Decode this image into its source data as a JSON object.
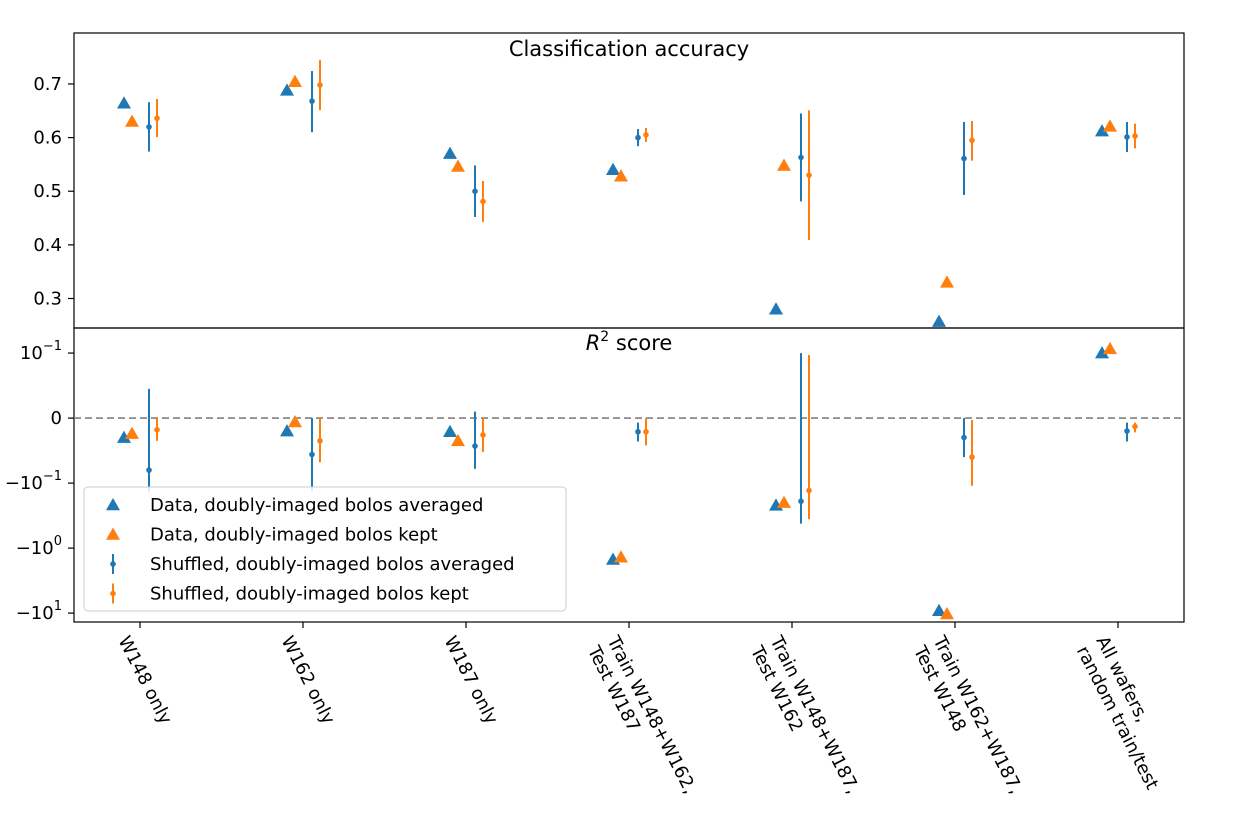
{
  "colors": {
    "blue": "#1f77b4",
    "orange": "#ff7f0e",
    "zero_line": "#808080"
  },
  "chart_data": [
    {
      "type": "scatter",
      "title": "Classification accuracy",
      "ylim": [
        0.245,
        0.795
      ],
      "yticks": [
        0.3,
        0.4,
        0.5,
        0.6,
        0.7
      ],
      "ytick_labels": [
        "0.3",
        "0.4",
        "0.5",
        "0.6",
        "0.7"
      ],
      "grid": false,
      "series": [
        {
          "name": "Data, doubly-imaged bolos averaged",
          "marker": "triangle",
          "color": "#1f77b4",
          "values": [
            0.664,
            0.688,
            0.57,
            0.54,
            0.28,
            0.257,
            0.612
          ]
        },
        {
          "name": "Data, doubly-imaged bolos kept",
          "marker": "triangle",
          "color": "#ff7f0e",
          "values": [
            0.63,
            0.704,
            0.546,
            0.528,
            0.548,
            0.33,
            0.621
          ]
        },
        {
          "name": "Shuffled, doubly-imaged bolos averaged",
          "marker": "errorbar",
          "color": "#1f77b4",
          "values": [
            0.62,
            0.668,
            0.5,
            0.6,
            0.563,
            0.561,
            0.601
          ],
          "err_low": [
            0.574,
            0.61,
            0.452,
            0.584,
            0.481,
            0.493,
            0.573
          ],
          "err_high": [
            0.666,
            0.724,
            0.548,
            0.616,
            0.645,
            0.629,
            0.629
          ]
        },
        {
          "name": "Shuffled, doubly-imaged bolos kept",
          "marker": "errorbar",
          "color": "#ff7f0e",
          "values": [
            0.636,
            0.698,
            0.481,
            0.605,
            0.53,
            0.595,
            0.603
          ],
          "err_low": [
            0.601,
            0.651,
            0.443,
            0.592,
            0.409,
            0.557,
            0.58
          ],
          "err_high": [
            0.672,
            0.745,
            0.519,
            0.618,
            0.651,
            0.631,
            0.626
          ]
        }
      ]
    },
    {
      "type": "scatter",
      "title": "$R^2$ score",
      "title_text": "R",
      "title_sup": "2",
      "title_rest": " score",
      "yscale": "symlog",
      "ylim": [
        -13.7,
        0.243
      ],
      "yticks": [
        -10,
        -1,
        -0.1,
        0,
        0.1
      ],
      "ytick_labels": [
        {
          "base": "−10",
          "exp": "1"
        },
        {
          "base": "−10",
          "exp": "0"
        },
        {
          "base": "−10",
          "exp": "−1"
        },
        {
          "base": "0",
          "exp": ""
        },
        {
          "base": "10",
          "exp": "−1"
        }
      ],
      "zero_line": true,
      "legend": "lower-left",
      "categories": [
        [
          "W148 only"
        ],
        [
          "W162 only"
        ],
        [
          "W187 only"
        ],
        [
          "Train W148+W162,",
          "Test W187"
        ],
        [
          "Train W148+W187,",
          "Test W162"
        ],
        [
          "Train W162+W187,",
          "Test W148"
        ],
        [
          "All wafers,",
          "random train/test"
        ]
      ],
      "series": [
        {
          "name": "Data, doubly-imaged bolos averaged",
          "marker": "triangle",
          "color": "#1f77b4",
          "values": [
            -0.03,
            -0.02,
            -0.021,
            -1.5,
            -0.22,
            -9.2,
            0.1
          ]
        },
        {
          "name": "Data, doubly-imaged bolos kept",
          "marker": "triangle",
          "color": "#ff7f0e",
          "values": [
            -0.024,
            -0.006,
            -0.035,
            -1.38,
            -0.2,
            -10.3,
            0.116
          ]
        },
        {
          "name": "Shuffled, doubly-imaged bolos averaged",
          "marker": "errorbar",
          "color": "#1f77b4",
          "values": [
            -0.08,
            -0.056,
            -0.043,
            -0.021,
            -0.19,
            -0.03,
            -0.02
          ],
          "err_low": [
            -0.137,
            -0.132,
            -0.078,
            -0.036,
            -0.42,
            -0.06,
            -0.036
          ],
          "err_high": [
            0.045,
            0.0,
            0.01,
            -0.007,
            0.1,
            0.0,
            -0.007
          ]
        },
        {
          "name": "Shuffled, doubly-imaged bolos kept",
          "marker": "errorbar",
          "color": "#ff7f0e",
          "values": [
            -0.018,
            -0.035,
            -0.026,
            -0.021,
            -0.13,
            -0.06,
            -0.013
          ],
          "err_low": [
            -0.035,
            -0.068,
            -0.052,
            -0.042,
            -0.36,
            -0.11,
            -0.022
          ],
          "err_high": [
            0.0,
            0.0,
            0.0,
            0.0,
            0.097,
            -0.003,
            -0.007
          ]
        }
      ]
    }
  ]
}
